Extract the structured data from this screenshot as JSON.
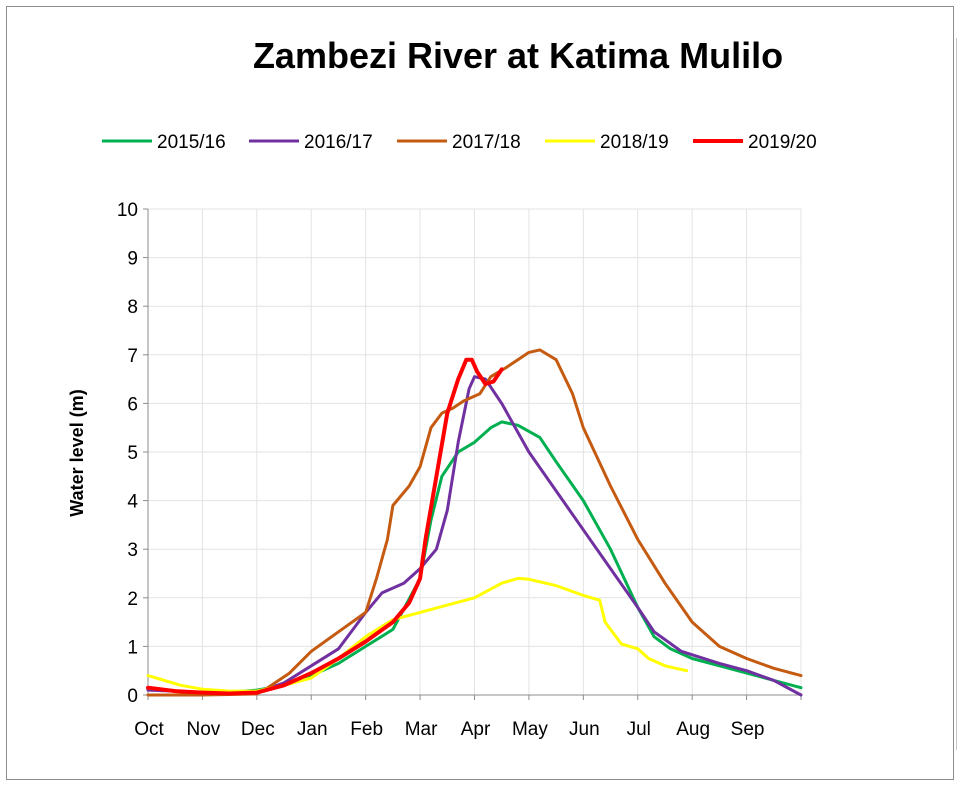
{
  "chart_data": {
    "type": "line",
    "title": "Zambezi River at Katima Mulilo",
    "ylabel": "Water level (m)",
    "xlabel": "",
    "categories": [
      "Oct",
      "Nov",
      "Dec",
      "Jan",
      "Feb",
      "Mar",
      "Apr",
      "May",
      "Jun",
      "Jul",
      "Aug",
      "Sep"
    ],
    "ylim": [
      0,
      10
    ],
    "yticks": [
      "0",
      "1",
      "2",
      "3",
      "4",
      "5",
      "6",
      "7",
      "8",
      "9",
      "10"
    ],
    "grid": true,
    "legend_position": "top",
    "series": [
      {
        "name": "2015/16",
        "color": "#00B050",
        "points": [
          [
            0,
            0.12
          ],
          [
            0.5,
            0.08
          ],
          [
            1,
            0.05
          ],
          [
            1.5,
            0.06
          ],
          [
            2,
            0.1
          ],
          [
            2.5,
            0.2
          ],
          [
            3,
            0.4
          ],
          [
            3.5,
            0.65
          ],
          [
            4,
            1.0
          ],
          [
            4.5,
            1.35
          ],
          [
            5,
            2.4
          ],
          [
            5.2,
            3.6
          ],
          [
            5.4,
            4.5
          ],
          [
            5.7,
            5.0
          ],
          [
            6,
            5.2
          ],
          [
            6.3,
            5.5
          ],
          [
            6.5,
            5.62
          ],
          [
            6.8,
            5.55
          ],
          [
            7.2,
            5.3
          ],
          [
            7.5,
            4.8
          ],
          [
            8,
            4.0
          ],
          [
            8.5,
            3.0
          ],
          [
            9,
            1.8
          ],
          [
            9.3,
            1.2
          ],
          [
            9.6,
            0.95
          ],
          [
            10,
            0.75
          ],
          [
            10.5,
            0.6
          ],
          [
            11,
            0.45
          ],
          [
            11.5,
            0.3
          ],
          [
            12,
            0.15
          ]
        ]
      },
      {
        "name": "2016/17",
        "color": "#7030A0",
        "points": [
          [
            0,
            0.1
          ],
          [
            0.5,
            0.08
          ],
          [
            1,
            0.05
          ],
          [
            1.5,
            0.03
          ],
          [
            2,
            0.05
          ],
          [
            2.5,
            0.25
          ],
          [
            3,
            0.6
          ],
          [
            3.5,
            0.95
          ],
          [
            3.8,
            1.4
          ],
          [
            4,
            1.7
          ],
          [
            4.3,
            2.1
          ],
          [
            4.7,
            2.3
          ],
          [
            5,
            2.6
          ],
          [
            5.3,
            3.0
          ],
          [
            5.5,
            3.8
          ],
          [
            5.7,
            5.2
          ],
          [
            5.9,
            6.3
          ],
          [
            6,
            6.55
          ],
          [
            6.2,
            6.5
          ],
          [
            6.5,
            6.0
          ],
          [
            7,
            5.0
          ],
          [
            7.5,
            4.2
          ],
          [
            8,
            3.4
          ],
          [
            8.5,
            2.6
          ],
          [
            9,
            1.8
          ],
          [
            9.3,
            1.3
          ],
          [
            9.8,
            0.9
          ],
          [
            10.5,
            0.65
          ],
          [
            11,
            0.5
          ],
          [
            11.5,
            0.3
          ],
          [
            12,
            0.0
          ]
        ]
      },
      {
        "name": "2017/18",
        "color": "#C55A11",
        "points": [
          [
            0,
            0.0
          ],
          [
            1,
            0.0
          ],
          [
            2,
            0.02
          ],
          [
            2.2,
            0.15
          ],
          [
            2.6,
            0.45
          ],
          [
            3,
            0.9
          ],
          [
            3.5,
            1.3
          ],
          [
            4,
            1.7
          ],
          [
            4.2,
            2.4
          ],
          [
            4.4,
            3.2
          ],
          [
            4.5,
            3.9
          ],
          [
            4.8,
            4.3
          ],
          [
            5,
            4.7
          ],
          [
            5.2,
            5.5
          ],
          [
            5.4,
            5.8
          ],
          [
            5.6,
            5.9
          ],
          [
            5.8,
            6.05
          ],
          [
            6.1,
            6.2
          ],
          [
            6.3,
            6.55
          ],
          [
            6.6,
            6.75
          ],
          [
            7,
            7.05
          ],
          [
            7.2,
            7.1
          ],
          [
            7.5,
            6.9
          ],
          [
            7.8,
            6.2
          ],
          [
            8,
            5.5
          ],
          [
            8.5,
            4.3
          ],
          [
            9,
            3.2
          ],
          [
            9.5,
            2.3
          ],
          [
            10,
            1.5
          ],
          [
            10.5,
            1.0
          ],
          [
            11,
            0.75
          ],
          [
            11.5,
            0.55
          ],
          [
            12,
            0.4
          ]
        ]
      },
      {
        "name": "2018/19",
        "color": "#FFFF00",
        "points": [
          [
            0,
            0.4
          ],
          [
            0.3,
            0.3
          ],
          [
            0.6,
            0.2
          ],
          [
            1,
            0.12
          ],
          [
            1.5,
            0.08
          ],
          [
            2,
            0.08
          ],
          [
            2.5,
            0.2
          ],
          [
            3,
            0.35
          ],
          [
            3.5,
            0.75
          ],
          [
            4,
            1.2
          ],
          [
            4.5,
            1.55
          ],
          [
            5,
            1.7
          ],
          [
            5.5,
            1.85
          ],
          [
            6,
            2.0
          ],
          [
            6.5,
            2.3
          ],
          [
            6.8,
            2.4
          ],
          [
            7,
            2.38
          ],
          [
            7.5,
            2.25
          ],
          [
            8,
            2.05
          ],
          [
            8.3,
            1.95
          ],
          [
            8.4,
            1.5
          ],
          [
            8.7,
            1.05
          ],
          [
            9,
            0.95
          ],
          [
            9.2,
            0.75
          ],
          [
            9.5,
            0.6
          ],
          [
            9.7,
            0.55
          ],
          [
            9.9,
            0.5
          ]
        ]
      },
      {
        "name": "2019/20",
        "color": "#FF0000",
        "points": [
          [
            0,
            0.15
          ],
          [
            0.5,
            0.08
          ],
          [
            1,
            0.05
          ],
          [
            1.5,
            0.03
          ],
          [
            2,
            0.05
          ],
          [
            2.5,
            0.2
          ],
          [
            3,
            0.45
          ],
          [
            3.5,
            0.75
          ],
          [
            4,
            1.1
          ],
          [
            4.5,
            1.5
          ],
          [
            4.8,
            1.9
          ],
          [
            5,
            2.4
          ],
          [
            5.1,
            3.2
          ],
          [
            5.3,
            4.5
          ],
          [
            5.5,
            5.8
          ],
          [
            5.7,
            6.5
          ],
          [
            5.85,
            6.9
          ],
          [
            5.95,
            6.9
          ],
          [
            6.05,
            6.65
          ],
          [
            6.2,
            6.4
          ],
          [
            6.35,
            6.45
          ],
          [
            6.5,
            6.7
          ]
        ]
      }
    ]
  }
}
